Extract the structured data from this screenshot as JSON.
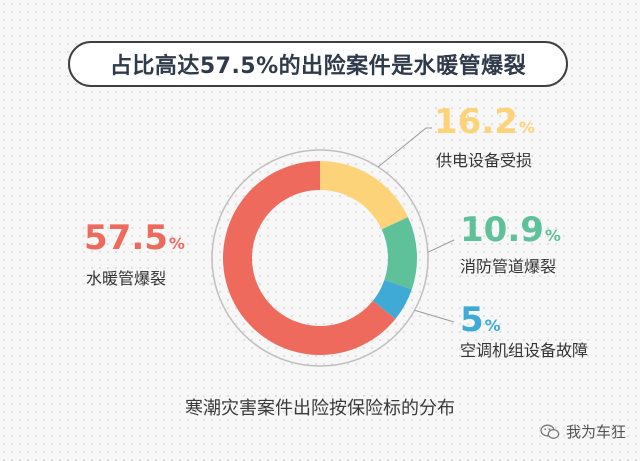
{
  "title": "占比高达57.5%的出险案件是水暖管爆裂",
  "subtitle": "寒潮灾害案件出险按保险标的分布",
  "brand": {
    "icon": "wechat-icon",
    "text": "我为车狂"
  },
  "colors": {
    "water": "#ee6a5d",
    "power": "#fdd37a",
    "fire": "#5ec199",
    "ac": "#40aad6",
    "ring_outline": "#bfbfbf"
  },
  "chart_data": {
    "type": "pie",
    "donut": true,
    "title": "占比高达57.5%的出险案件是水暖管爆裂",
    "subtitle": "寒潮灾害案件出险按保险标的分布",
    "unit": "%",
    "slices": [
      {
        "label": "供电设备受损",
        "value_text": "16.2",
        "value": 16.2,
        "color": "#fdd37a"
      },
      {
        "label": "消防管道爆裂",
        "value_text": "10.9",
        "value": 10.9,
        "color": "#5ec199"
      },
      {
        "label": "空调机组设备故障",
        "value_text": "5",
        "value": 5,
        "color": "#40aad6"
      },
      {
        "label": "水暖管爆裂",
        "value_text": "57.5",
        "value": 57.5,
        "color": "#ee6a5d"
      }
    ]
  }
}
